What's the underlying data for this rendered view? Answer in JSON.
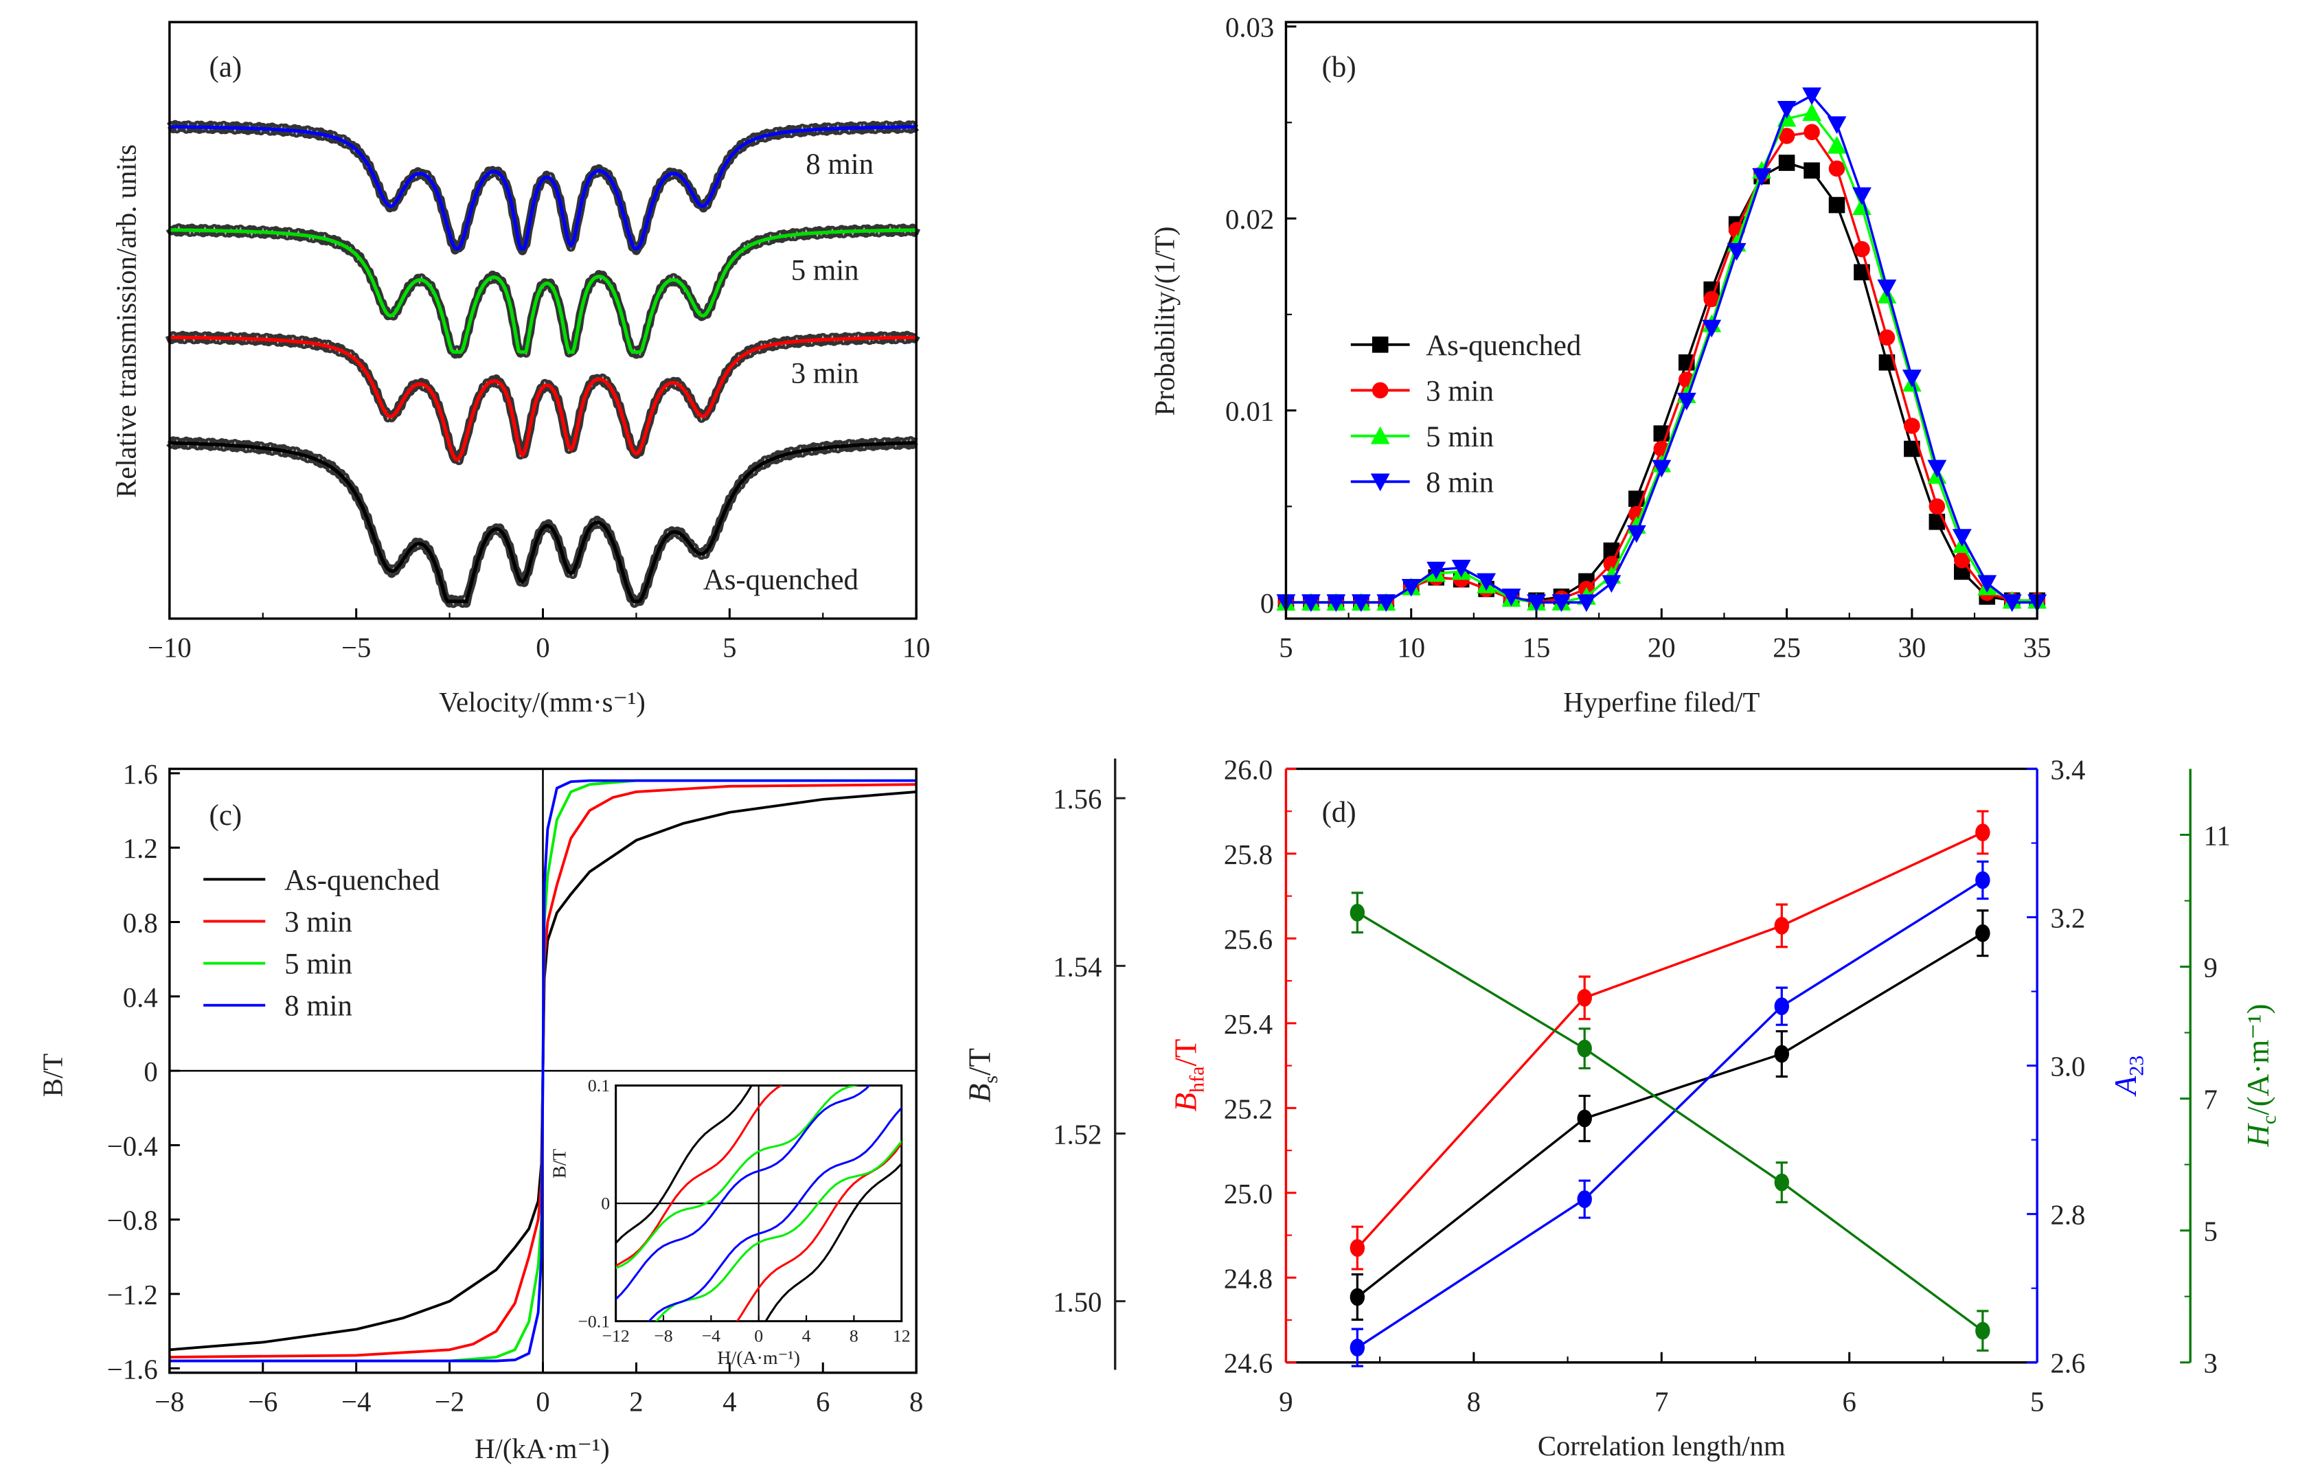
{
  "chart_data": [
    {
      "panel": "(a)",
      "type": "line",
      "xlabel": "Velocity/(mm·s⁻¹)",
      "ylabel": "Relative transmission/arb. units",
      "xlim": [
        -10,
        10
      ],
      "xticks": [
        "−10",
        "−5",
        "0",
        "5",
        "10"
      ],
      "peak_positions": [
        -4.1,
        -2.3,
        -0.55,
        0.75,
        2.5,
        4.3
      ],
      "series": [
        {
          "name": "8 min",
          "color": "#0000ff",
          "dip_depths": [
            0.6,
            0.95,
            0.9,
            0.85,
            0.95,
            0.6
          ]
        },
        {
          "name": "5 min",
          "color": "#00dd00",
          "dip_depths": [
            0.65,
            1.0,
            0.95,
            0.9,
            1.0,
            0.65
          ]
        },
        {
          "name": "3 min",
          "color": "#ff0000",
          "dip_depths": [
            0.6,
            0.95,
            0.85,
            0.8,
            0.9,
            0.6
          ]
        },
        {
          "name": "As-quenched",
          "color": "#000000",
          "dip_depths": [
            0.7,
            1.0,
            0.65,
            0.6,
            0.9,
            0.6
          ]
        }
      ]
    },
    {
      "panel": "(b)",
      "type": "line",
      "xlabel": "Hyperfine filed/T",
      "ylabel": "Probability/(1/T)",
      "xlim": [
        5,
        35
      ],
      "ylim": [
        0,
        0.03
      ],
      "xticks": [
        "5",
        "10",
        "15",
        "20",
        "25",
        "30",
        "35"
      ],
      "yticks": [
        "0",
        "0.01",
        "0.02",
        "0.03"
      ],
      "legend_position": "middle-left",
      "x": [
        5,
        6,
        7,
        8,
        9,
        10,
        11,
        12,
        13,
        14,
        15,
        16,
        17,
        18,
        19,
        20,
        21,
        22,
        23,
        24,
        25,
        26,
        27,
        28,
        29,
        30,
        31,
        32,
        33,
        34,
        35
      ],
      "series": [
        {
          "name": "As-quenched",
          "color": "#000000",
          "marker": "square",
          "values": [
            0,
            0,
            0,
            0,
            0,
            0.0008,
            0.0013,
            0.0012,
            0.0007,
            0.0002,
            0.0001,
            0.0003,
            0.0011,
            0.0027,
            0.0054,
            0.0088,
            0.0125,
            0.0163,
            0.0197,
            0.0222,
            0.0229,
            0.0225,
            0.0207,
            0.0172,
            0.0125,
            0.008,
            0.0042,
            0.0016,
            0.0003,
            0.0001,
            0.0001
          ]
        },
        {
          "name": "3 min",
          "color": "#ff0000",
          "marker": "circle",
          "values": [
            0,
            0,
            0,
            0,
            0,
            0.0008,
            0.0013,
            0.0012,
            0.0007,
            0.0002,
            0,
            0.0002,
            0.0007,
            0.002,
            0.0046,
            0.008,
            0.0116,
            0.0158,
            0.0194,
            0.0223,
            0.0243,
            0.0245,
            0.0226,
            0.0184,
            0.0138,
            0.0092,
            0.005,
            0.0022,
            0.0005,
            0.0001,
            0.0001
          ]
        },
        {
          "name": "5 min",
          "color": "#00ff00",
          "marker": "triangle-up",
          "values": [
            0,
            0,
            0,
            0,
            0,
            0.0008,
            0.0015,
            0.0016,
            0.0009,
            0.0002,
            0,
            0,
            0.0003,
            0.0014,
            0.004,
            0.0072,
            0.0108,
            0.0145,
            0.0187,
            0.0225,
            0.0252,
            0.0255,
            0.0238,
            0.0206,
            0.016,
            0.0114,
            0.0066,
            0.003,
            0.0008,
            0.0001,
            0.0001
          ]
        },
        {
          "name": "8 min",
          "color": "#0000ff",
          "marker": "triangle-down",
          "values": [
            0,
            0,
            0,
            0,
            0,
            0.0008,
            0.0017,
            0.0018,
            0.0011,
            0.0003,
            0,
            0,
            0,
            0.001,
            0.0036,
            0.007,
            0.0105,
            0.0143,
            0.0183,
            0.0222,
            0.0257,
            0.0264,
            0.0249,
            0.0212,
            0.0164,
            0.0117,
            0.007,
            0.0034,
            0.001,
            0,
            0
          ]
        }
      ]
    },
    {
      "panel": "(c)",
      "type": "line",
      "xlabel": "H/(kA·m⁻¹)",
      "ylabel": "B/T",
      "xlim": [
        -8,
        8
      ],
      "ylim": [
        -1.6,
        1.6
      ],
      "xticks": [
        "−8",
        "−6",
        "−4",
        "−2",
        "0",
        "2",
        "4",
        "6",
        "8"
      ],
      "yticks": [
        "−1.6",
        "−1.2",
        "−0.8",
        "−0.4",
        "0",
        "0.4",
        "0.8",
        "1.2",
        "1.6"
      ],
      "legend_position": "top-left",
      "series": [
        {
          "name": "As-quenched",
          "color": "#000000",
          "points": [
            [
              0,
              0
            ],
            [
              0.03,
              0.5
            ],
            [
              0.1,
              0.7
            ],
            [
              0.3,
              0.85
            ],
            [
              0.6,
              0.95
            ],
            [
              1,
              1.07
            ],
            [
              2,
              1.24
            ],
            [
              3,
              1.33
            ],
            [
              4,
              1.39
            ],
            [
              6,
              1.46
            ],
            [
              8,
              1.5
            ]
          ]
        },
        {
          "name": "3 min",
          "color": "#ff0000",
          "points": [
            [
              0,
              0
            ],
            [
              0.03,
              0.6
            ],
            [
              0.1,
              0.8
            ],
            [
              0.3,
              1.0
            ],
            [
              0.6,
              1.25
            ],
            [
              1,
              1.4
            ],
            [
              1.5,
              1.47
            ],
            [
              2,
              1.5
            ],
            [
              4,
              1.53
            ],
            [
              8,
              1.54
            ]
          ]
        },
        {
          "name": "5 min",
          "color": "#00ee00",
          "points": [
            [
              0,
              0
            ],
            [
              0.03,
              0.8
            ],
            [
              0.1,
              1.05
            ],
            [
              0.3,
              1.35
            ],
            [
              0.6,
              1.5
            ],
            [
              1,
              1.54
            ],
            [
              2,
              1.56
            ],
            [
              8,
              1.56
            ]
          ]
        },
        {
          "name": "8 min",
          "color": "#0000ff",
          "points": [
            [
              0,
              0
            ],
            [
              0.03,
              1.0
            ],
            [
              0.1,
              1.3
            ],
            [
              0.3,
              1.52
            ],
            [
              0.6,
              1.555
            ],
            [
              1,
              1.56
            ],
            [
              8,
              1.56
            ]
          ]
        }
      ],
      "inset": {
        "xlabel": "H/(A·m⁻¹)",
        "ylabel": "B/T",
        "xlim": [
          -12,
          12
        ],
        "ylim": [
          -0.1,
          0.1
        ],
        "xticks": [
          "−12",
          "−8",
          "−4",
          "0",
          "4",
          "8",
          "12"
        ],
        "yticks": [
          "−0.1",
          "0",
          "0.1"
        ]
      }
    },
    {
      "panel": "(d)",
      "type": "line",
      "xlabel": "Correlation length/nm",
      "xlim": [
        9,
        5
      ],
      "xticks": [
        "9",
        "8",
        "7",
        "6",
        "5"
      ],
      "x": [
        8.62,
        7.41,
        6.36,
        5.29
      ],
      "axes": {
        "bs": {
          "label": "B",
          "sub": "s",
          "unit": "/T",
          "color": "#222222",
          "ylim": [
            1.4927,
            1.5635
          ],
          "ticks": [
            "1.50",
            "1.52",
            "1.54",
            "1.56"
          ]
        },
        "bhfa": {
          "label": "B",
          "sub": "hfa",
          "unit": "/T",
          "color": "#ff0000",
          "ylim": [
            24.6,
            26.0
          ],
          "ticks": [
            "24.6",
            "24.8",
            "25.0",
            "25.2",
            "25.4",
            "25.6",
            "25.8",
            "26.0"
          ]
        },
        "a23": {
          "label": "A",
          "sub": "23",
          "unit": "",
          "color": "#0000ff",
          "ylim": [
            2.6,
            3.4
          ],
          "ticks": [
            "2.6",
            "2.8",
            "3.0",
            "3.2",
            "3.4"
          ]
        },
        "hc": {
          "label": "H",
          "sub": "c",
          "unit": "/(A·m⁻¹)",
          "color": "#0a7a0a",
          "ylim": [
            3,
            12
          ],
          "ticks": [
            "3",
            "5",
            "7",
            "9",
            "11"
          ]
        }
      },
      "series": [
        {
          "axis": "bhfa",
          "color": "#ff0000",
          "values": [
            24.87,
            25.46,
            25.63,
            25.85
          ],
          "errors": [
            0.05,
            0.05,
            0.05,
            0.05
          ]
        },
        {
          "axis": "bs",
          "color": "#000000",
          "values": [
            1.5005,
            1.5218,
            1.5295,
            1.5439
          ],
          "errors": [
            0.0027,
            0.0027,
            0.0027,
            0.0027
          ]
        },
        {
          "axis": "a23",
          "color": "#0000ff",
          "values": [
            2.62,
            2.82,
            3.08,
            3.25
          ],
          "errors": [
            0.025,
            0.025,
            0.025,
            0.025
          ]
        },
        {
          "axis": "hc",
          "color": "#0a7a0a",
          "values": [
            9.82,
            7.76,
            5.73,
            3.48
          ],
          "errors": [
            0.3,
            0.3,
            0.3,
            0.3
          ]
        }
      ]
    }
  ]
}
